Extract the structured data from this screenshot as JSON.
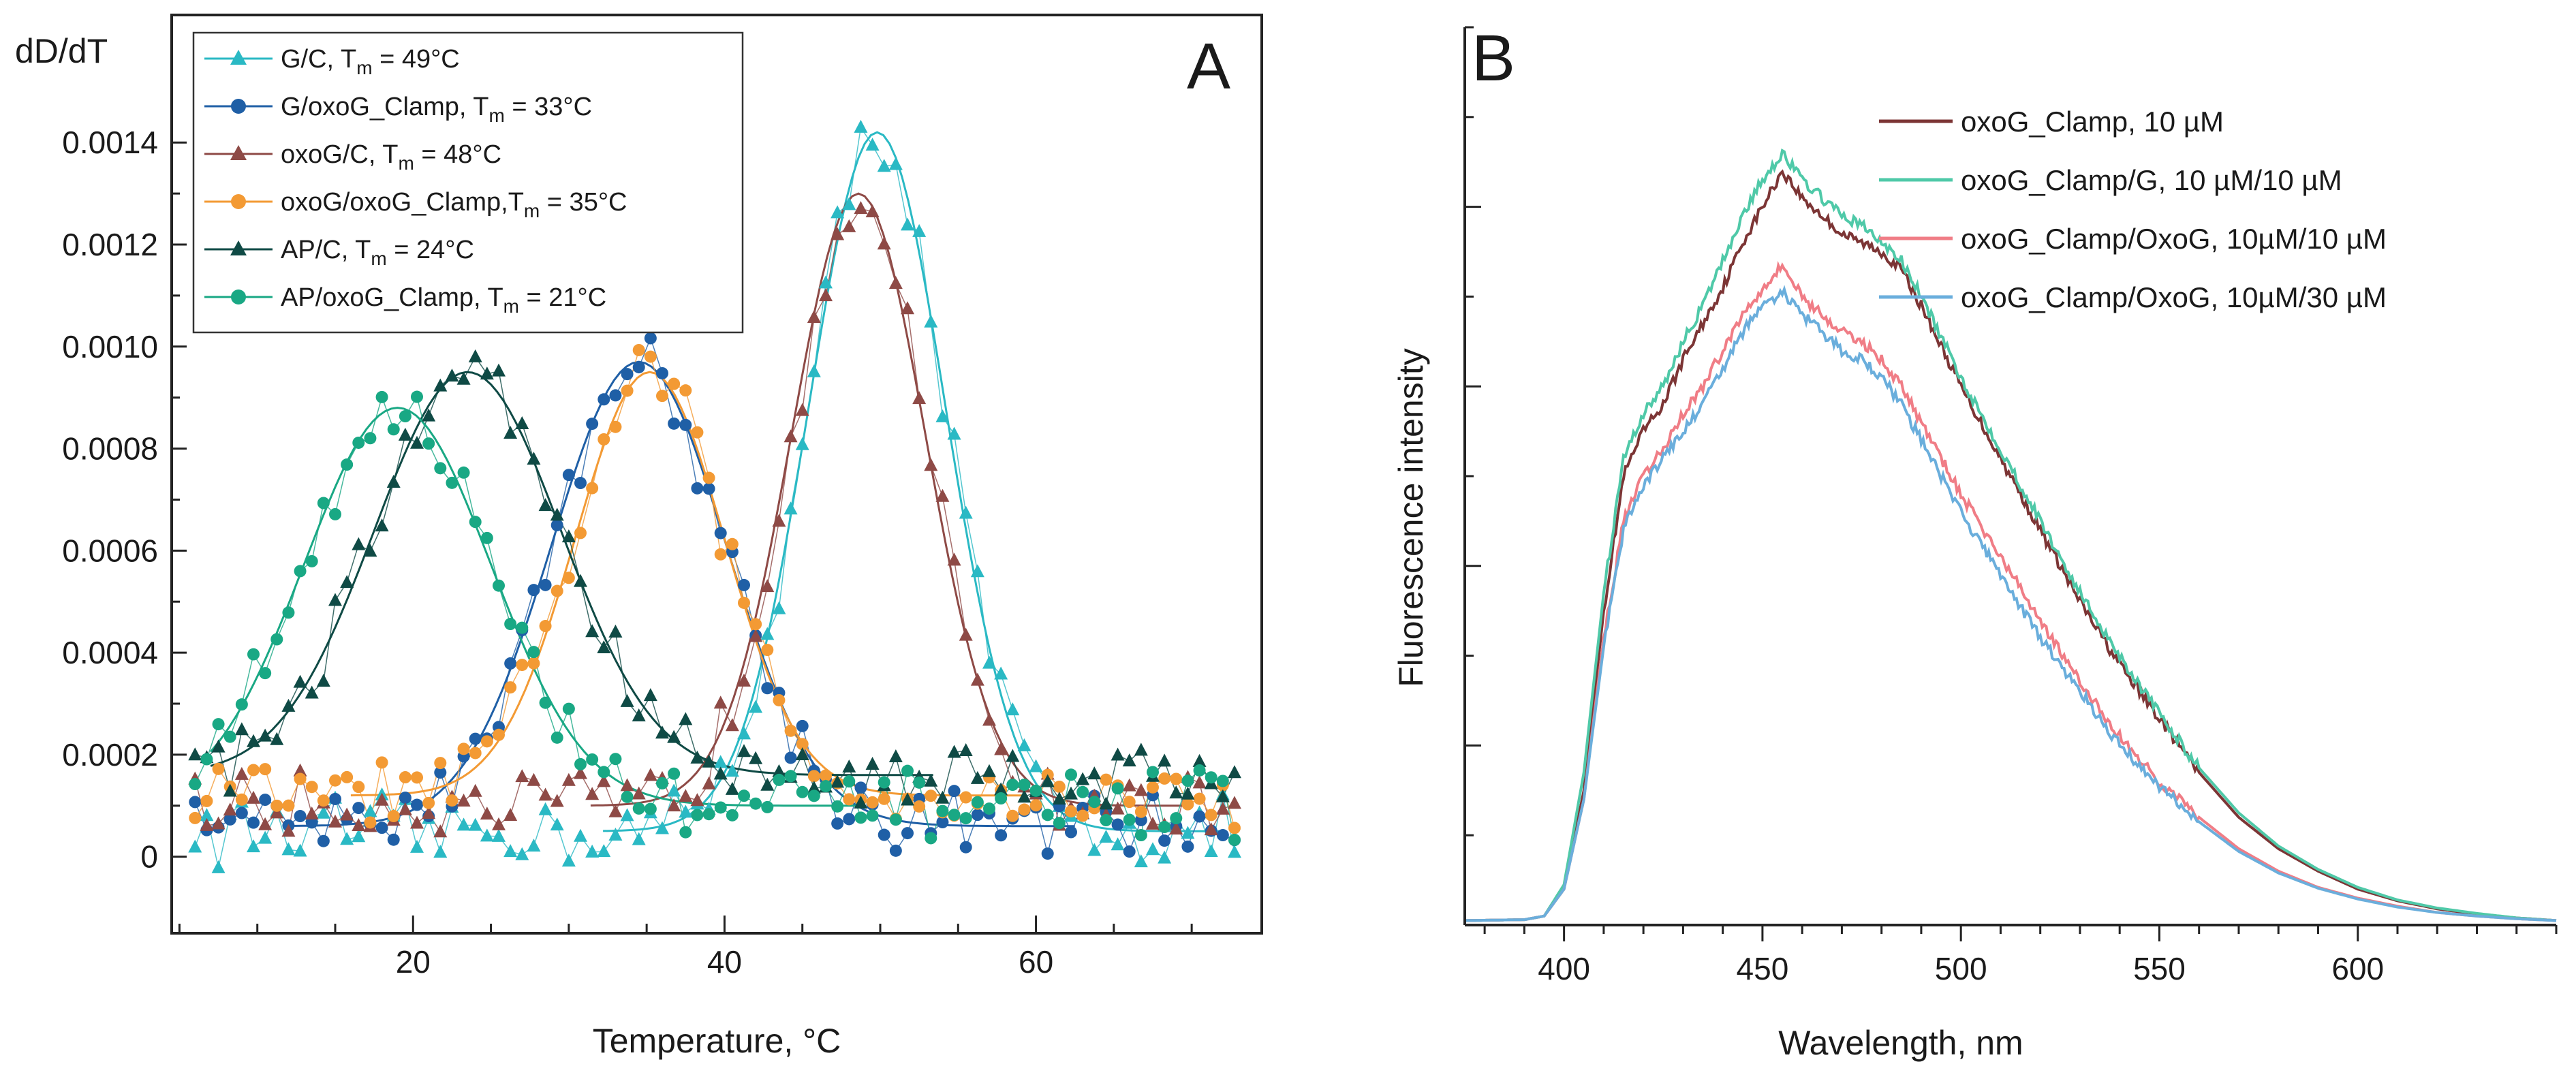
{
  "chart_data": [
    {
      "type": "scatter",
      "panel_label": "A",
      "ylabel": "dD/dT",
      "xlabel": "Temperature, °C",
      "xlim": [
        4.5,
        74.5
      ],
      "ylim": [
        -0.00015,
        0.00165
      ],
      "x_ticks": [
        20,
        40,
        60
      ],
      "y_ticks": [
        0,
        0.0002,
        0.0004,
        0.0006,
        0.0008,
        0.001,
        0.0012,
        0.0014
      ],
      "y_tick_labels": [
        "0",
        "0.0002",
        "0.0004",
        "0.0006",
        "0.0008",
        "0.0010",
        "0.0012",
        "0.0014"
      ],
      "x_minor_step": 5,
      "y_minor_step": 0.0001,
      "legend_position": "top-left",
      "series": [
        {
          "name": "G/C",
          "label_main": "G/C, T",
          "label_sub": "m",
          "label_tail": " = 49°C",
          "marker": "triangle",
          "color": "#2ab9c4",
          "tm": 49,
          "fit": {
            "peak": 0.00142,
            "center": 49.8,
            "width": 4.4,
            "baseline": 5e-05
          }
        },
        {
          "name": "G/oxoG_Clamp",
          "label_main": "G/oxoG_Clamp, T",
          "label_sub": "m",
          "label_tail": " = 33°C",
          "marker": "circle",
          "color": "#1f5fa6",
          "tm": 33,
          "fit": {
            "peak": 0.00097,
            "center": 34.5,
            "width": 5.6,
            "baseline": 6e-05
          }
        },
        {
          "name": "oxoG/C",
          "label_main": "oxoG/C,  T",
          "label_sub": "m",
          "label_tail": " = 48°C",
          "marker": "triangle",
          "color": "#8e4a46",
          "tm": 48,
          "fit": {
            "peak": 0.0013,
            "center": 48.6,
            "width": 4.3,
            "baseline": 0.0001
          }
        },
        {
          "name": "oxoG/oxoG_Clamp",
          "label_main": "oxoG/oxoG_Clamp,T",
          "label_sub": "m",
          "label_tail": " = 35°C",
          "marker": "circle",
          "color": "#f39a34",
          "tm": 35,
          "fit": {
            "peak": 0.00095,
            "center": 35.2,
            "width": 4.8,
            "baseline": 0.00012
          }
        },
        {
          "name": "AP/C",
          "label_main": "AP/C, T",
          "label_sub": "m",
          "label_tail": " = 24°C",
          "marker": "triangle",
          "color": "#0f4a45",
          "tm": 24,
          "fit": {
            "peak": 0.00095,
            "center": 23.5,
            "width": 6.0,
            "baseline": 0.00016
          }
        },
        {
          "name": "AP/oxoG_Clamp",
          "label_main": "AP/oxoG_Clamp, T",
          "label_sub": "m",
          "label_tail": " = 21°C",
          "marker": "circle",
          "color": "#19a884",
          "tm": 21,
          "fit": {
            "peak": 0.00088,
            "center": 19.0,
            "width": 6.0,
            "baseline": 0.0001
          }
        }
      ]
    },
    {
      "type": "line",
      "panel_label": "B",
      "ylabel": "Fluorescence intensity",
      "xlabel": "Wavelength, nm",
      "xlim": [
        375,
        650
      ],
      "ylim": [
        0,
        1.0
      ],
      "x_ticks": [
        400,
        450,
        500,
        550,
        600
      ],
      "x_minor_step": 10,
      "y_major_ticks": [
        0.2,
        0.4,
        0.6,
        0.8
      ],
      "y_minor_step": 0.1,
      "legend_position": "top-right",
      "series": [
        {
          "name": "oxoG_Clamp, 10 µM",
          "color": "#7c3535",
          "peak": 0.84,
          "x": [
            375,
            390,
            395,
            400,
            405,
            410,
            415,
            420,
            425,
            430,
            435,
            440,
            445,
            450,
            455,
            460,
            465,
            470,
            475,
            480,
            485,
            490,
            500,
            510,
            520,
            530,
            540,
            550,
            560,
            570,
            580,
            590,
            600,
            610,
            620,
            630,
            640,
            650
          ],
          "y": [
            0.005,
            0.006,
            0.01,
            0.04,
            0.15,
            0.35,
            0.5,
            0.55,
            0.58,
            0.63,
            0.67,
            0.71,
            0.76,
            0.8,
            0.84,
            0.81,
            0.79,
            0.77,
            0.76,
            0.75,
            0.73,
            0.69,
            0.6,
            0.52,
            0.44,
            0.36,
            0.29,
            0.23,
            0.17,
            0.12,
            0.085,
            0.06,
            0.04,
            0.027,
            0.018,
            0.012,
            0.008,
            0.005
          ]
        },
        {
          "name": "oxoG_Clamp/G, 10 µM/10 µM",
          "color": "#4fc9a8",
          "peak": 0.86,
          "x": [
            375,
            390,
            395,
            400,
            405,
            410,
            415,
            420,
            425,
            430,
            435,
            440,
            445,
            450,
            455,
            460,
            465,
            470,
            475,
            480,
            485,
            490,
            500,
            510,
            520,
            530,
            540,
            550,
            560,
            570,
            580,
            590,
            600,
            610,
            620,
            630,
            640,
            650
          ],
          "y": [
            0.005,
            0.006,
            0.01,
            0.045,
            0.17,
            0.37,
            0.52,
            0.57,
            0.6,
            0.65,
            0.69,
            0.74,
            0.79,
            0.83,
            0.86,
            0.83,
            0.81,
            0.79,
            0.78,
            0.76,
            0.74,
            0.7,
            0.61,
            0.53,
            0.45,
            0.37,
            0.3,
            0.235,
            0.175,
            0.125,
            0.088,
            0.062,
            0.042,
            0.028,
            0.019,
            0.013,
            0.008,
            0.005
          ]
        },
        {
          "name": "oxoG_Clamp/OxoG, 10µM/10 µM",
          "color": "#f07d86",
          "peak": 0.735,
          "x": [
            375,
            390,
            395,
            400,
            405,
            410,
            415,
            420,
            425,
            430,
            435,
            440,
            445,
            450,
            455,
            460,
            465,
            470,
            475,
            480,
            485,
            490,
            500,
            510,
            520,
            530,
            540,
            550,
            560,
            570,
            580,
            590,
            600,
            610,
            620,
            630,
            640,
            650
          ],
          "y": [
            0.005,
            0.006,
            0.01,
            0.04,
            0.14,
            0.32,
            0.45,
            0.5,
            0.53,
            0.57,
            0.6,
            0.64,
            0.68,
            0.71,
            0.735,
            0.7,
            0.68,
            0.66,
            0.65,
            0.63,
            0.6,
            0.56,
            0.48,
            0.41,
            0.34,
            0.27,
            0.21,
            0.16,
            0.12,
            0.085,
            0.06,
            0.042,
            0.03,
            0.021,
            0.014,
            0.01,
            0.007,
            0.005
          ]
        },
        {
          "name": "oxoG_Clamp/OxoG, 10µM/30 µM",
          "color": "#6aaedc",
          "peak": 0.705,
          "x": [
            375,
            390,
            395,
            400,
            405,
            410,
            415,
            420,
            425,
            430,
            435,
            440,
            445,
            450,
            455,
            460,
            465,
            470,
            475,
            480,
            485,
            490,
            500,
            510,
            520,
            530,
            540,
            550,
            560,
            570,
            580,
            590,
            600,
            610,
            620,
            630,
            640,
            650
          ],
          "y": [
            0.005,
            0.006,
            0.01,
            0.04,
            0.14,
            0.31,
            0.44,
            0.49,
            0.52,
            0.55,
            0.58,
            0.62,
            0.66,
            0.69,
            0.705,
            0.68,
            0.66,
            0.64,
            0.63,
            0.61,
            0.58,
            0.54,
            0.46,
            0.39,
            0.32,
            0.26,
            0.2,
            0.155,
            0.115,
            0.082,
            0.058,
            0.041,
            0.029,
            0.02,
            0.014,
            0.01,
            0.007,
            0.005
          ]
        }
      ]
    }
  ]
}
